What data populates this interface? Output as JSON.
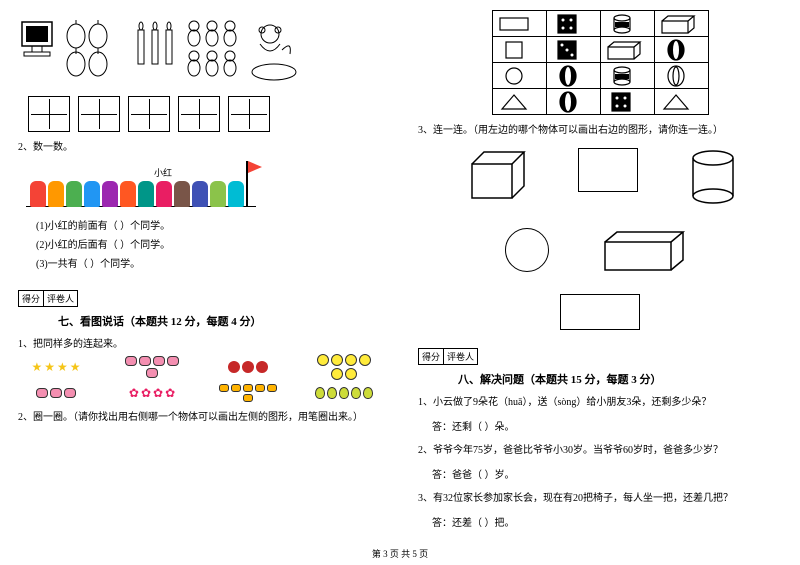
{
  "footer": "第 3 页 共 5 页",
  "left": {
    "icons_top": {
      "groups": [
        "computer",
        "lanterns",
        "candles",
        "bears",
        "monkey-dish"
      ]
    },
    "q2_label": "2、数一数。",
    "kids": {
      "label_xiaohong": "小红",
      "xiaohong_index": 7,
      "count": 12,
      "colors": [
        "#f44336",
        "#ff9800",
        "#4caf50",
        "#2196f3",
        "#9c27b0",
        "#ff5722",
        "#009688",
        "#e91e63",
        "#795548",
        "#3f51b5",
        "#8bc34a",
        "#00bcd4"
      ]
    },
    "fill": {
      "l1": "(1)小红的前面有（     ）个同学。",
      "l2": "(2)小红的后面有（     ）个同学。",
      "l3": "(3)一共有（     ）个同学。"
    },
    "score_labels": {
      "a": "得分",
      "b": "评卷人"
    },
    "sec7_title": "七、看图说话（本题共 12 分，每题 4 分）",
    "q7_1": "1、把同样多的连起来。",
    "match": {
      "row1": [
        {
          "type": "star",
          "n": 4
        },
        {
          "type": "pig",
          "n": 5
        },
        {
          "type": "apple",
          "n": 3
        },
        {
          "type": "smiley",
          "n": 6
        }
      ],
      "row2": [
        {
          "type": "pig",
          "n": 3
        },
        {
          "type": "flower",
          "n": 4
        },
        {
          "type": "bee",
          "n": 6
        },
        {
          "type": "pear",
          "n": 5
        }
      ]
    },
    "q7_2": "2、圈一圈。（请你找出用右侧哪一个物体可以画出左侧的图形，用笔圈出来。）"
  },
  "right": {
    "table": {
      "rows": [
        [
          "rect",
          "dice",
          "can",
          "cuboid"
        ],
        [
          "square",
          "dice2",
          "cuboid2",
          "oval-solid"
        ],
        [
          "circle",
          "oval-solid",
          "can",
          "oval-open"
        ],
        [
          "triangle",
          "oval-solid",
          "dice",
          "triangle2"
        ]
      ]
    },
    "q3": "3、连一连。（用左边的哪个物体可以画出右边的图形，请你连一连。）",
    "score_labels": {
      "a": "得分",
      "b": "评卷人"
    },
    "sec8_title": "八、解决问题（本题共 15 分，每题 3 分）",
    "p1": "1、小云做了9朵花（huā），送（sòng）给小朋友3朵，还剩多少朵？",
    "a1": "答：还剩（   ）朵。",
    "p2": "2、爷爷今年75岁，爸爸比爷爷小30岁。当爷爷60岁时，爸爸多少岁？",
    "a2": "答：爸爸（   ）岁。",
    "p3": "3、有32位家长参加家长会，现在有20把椅子，每人坐一把，还差几把？",
    "a3": "答：还差（   ）把。"
  },
  "colors": {
    "text": "#000000",
    "bg": "#ffffff",
    "border": "#000000"
  }
}
